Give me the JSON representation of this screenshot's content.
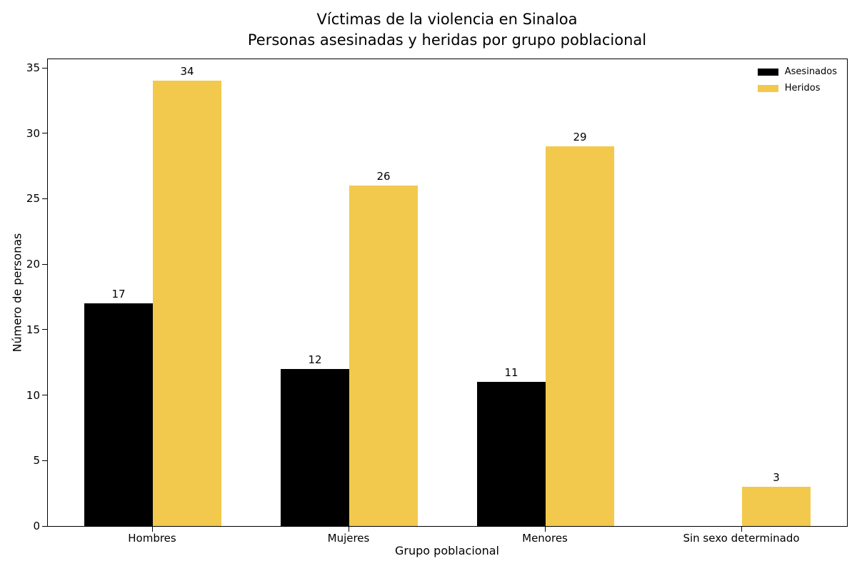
{
  "chart_data": {
    "type": "bar",
    "title": "Víctimas de la violencia en Sinaloa",
    "subtitle": "Personas asesinadas y heridas por grupo poblacional",
    "categories": [
      "Hombres",
      "Mujeres",
      "Menores",
      "Sin sexo determinado"
    ],
    "series": [
      {
        "name": "Asesinados",
        "color": "#000000",
        "values": [
          17,
          12,
          11,
          0
        ]
      },
      {
        "name": "Heridos",
        "color": "#F2C94C",
        "values": [
          34,
          26,
          29,
          3
        ]
      }
    ],
    "xlabel": "Grupo poblacional",
    "ylabel": "Número de personas",
    "ylim": [
      0,
      35
    ],
    "yticks": [
      0,
      5,
      10,
      15,
      20,
      25,
      30,
      35
    ],
    "grid": false,
    "legend_position": "upper right",
    "bar_value_labels": true,
    "hide_zero_value_bars": true,
    "background_color": "#ffffff",
    "text_color": "#000000"
  }
}
